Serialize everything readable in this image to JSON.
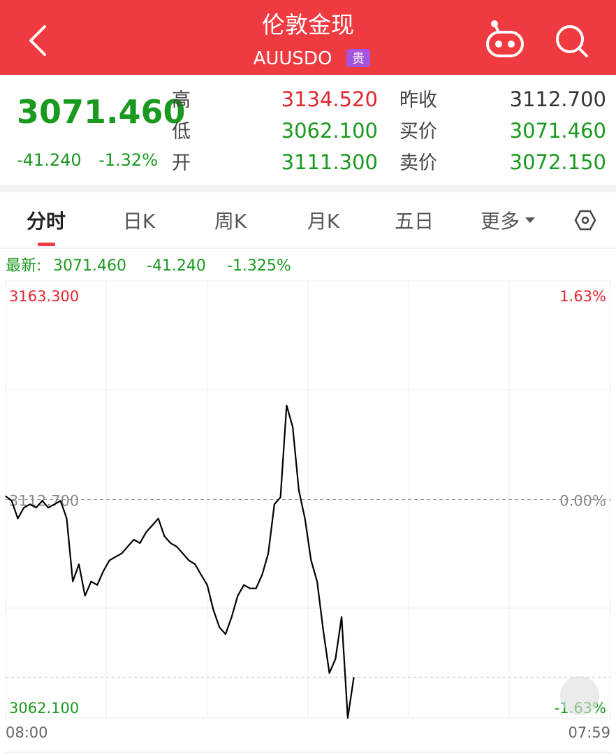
{
  "header": {
    "title": "伦敦金现",
    "symbol": "AUUSDO",
    "badge": "贵"
  },
  "quote": {
    "price": "3071.460",
    "change": "-41.240",
    "change_pct": "-1.32%",
    "rows": [
      [
        {
          "label": "高",
          "value": "3134.520"
        },
        {
          "label": "昨收",
          "value": "3112.700"
        }
      ],
      [
        {
          "label": "低",
          "value": "3062.100"
        },
        {
          "label": "买价",
          "value": "3071.460"
        }
      ],
      [
        {
          "label": "开",
          "value": "3111.300"
        },
        {
          "label": "卖价",
          "value": "3072.150"
        }
      ]
    ]
  },
  "tabs": [
    "分时",
    "日K",
    "周K",
    "月K",
    "五日",
    "更多"
  ],
  "latest": {
    "label": "最新:",
    "price": "3071.460",
    "change": "-41.240",
    "pct": "-1.325%"
  },
  "chart_data": {
    "type": "line",
    "categories": [
      "08:00",
      null,
      null,
      null,
      null,
      null,
      null,
      null,
      null,
      null,
      null,
      null,
      null,
      null,
      null,
      null,
      null,
      null,
      null,
      null,
      null,
      null,
      null,
      null,
      null,
      null,
      null,
      null,
      null,
      null,
      null,
      null,
      null,
      null,
      null,
      null,
      null,
      null,
      null,
      null,
      null,
      null,
      null,
      null,
      null,
      null,
      null,
      null,
      null,
      null,
      null,
      null,
      null,
      null,
      null,
      null,
      null,
      null,
      null,
      null,
      null,
      null,
      null,
      null,
      null,
      null,
      null,
      null,
      null,
      null,
      null,
      null,
      null,
      null,
      null,
      null,
      null,
      null,
      null,
      null,
      null,
      null,
      null,
      null,
      null,
      null,
      null,
      null,
      null,
      null,
      null,
      null,
      null,
      null,
      null,
      null,
      null,
      null,
      null,
      "07:59"
    ],
    "series": [
      {
        "color": "#000000",
        "values": [
          3113.5,
          3112.4,
          3108.3,
          3110.8,
          3111.6,
          3110.8,
          3112.4,
          3110.8,
          3111.6,
          3112.4,
          3108.3,
          3093.7,
          3097.7,
          3090.4,
          3093.7,
          3092.9,
          3096.1,
          3098.6,
          3099.4,
          3100.2,
          3101.8,
          3103.4,
          3102.6,
          3105.1,
          3106.7,
          3108.3,
          3104.2,
          3102.6,
          3101.8,
          3100.2,
          3098.6,
          3097.7,
          3095.3,
          3092.9,
          3087.2,
          3083.1,
          3081.5,
          3085.5,
          3090.4,
          3092.9,
          3092.1,
          3092.1,
          3095.3,
          3100.2,
          3111.6,
          3113.2,
          3134.5,
          3129.5,
          3114.8,
          3108.3,
          3098.6,
          3093.7,
          3082.3,
          3072.5,
          3075.8,
          3085.5,
          3062.1,
          3071.5,
          null,
          null,
          null,
          null,
          null,
          null,
          null,
          null,
          null,
          null,
          null,
          null,
          null,
          null,
          null,
          null,
          null,
          null,
          null,
          null,
          null,
          null,
          null,
          null,
          null,
          null,
          null,
          null,
          null,
          null,
          null,
          null,
          null,
          null,
          null,
          null,
          null,
          null,
          null,
          null,
          null,
          null
        ]
      }
    ],
    "ylim": [
      3062.1,
      3163.3
    ],
    "yticks": [
      {
        "value": 3163.3,
        "label": "3163.300"
      },
      {
        "value": 3112.7,
        "label": "3112.700"
      },
      {
        "value": 3062.1,
        "label": "3062.100"
      }
    ],
    "y2lim": [
      -1.63,
      1.63
    ],
    "y2ticks": [
      {
        "value": 1.63,
        "label": "1.63%"
      },
      {
        "value": 0,
        "label": "0.00%"
      },
      {
        "value": -1.63,
        "label": "-1.63%"
      }
    ]
  }
}
